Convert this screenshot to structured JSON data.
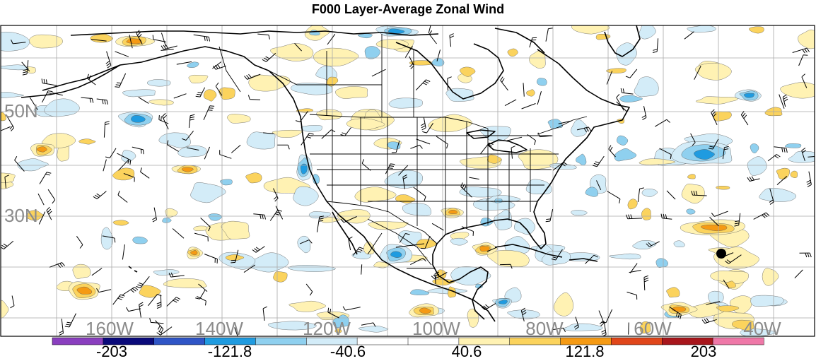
{
  "title": "F000 Layer-Average Zonal Wind",
  "map": {
    "lat_labels": [
      "50N",
      "30N"
    ],
    "lon_labels": [
      "160W",
      "140W",
      "120W",
      "100W",
      "80W",
      "60W",
      "40W"
    ]
  },
  "colorbar": {
    "colors": [
      "#8a3fbf",
      "#0a0a7a",
      "#2f55c6",
      "#1f9be0",
      "#8fd0ef",
      "#d3ecf8",
      "#ffffff",
      "#ffffff",
      "#fff2b3",
      "#fbd35d",
      "#f59a14",
      "#e0461a",
      "#a8161c",
      "#ef78a8"
    ],
    "labels": [
      "-203",
      "-121.8",
      "-40.6",
      "40.6",
      "121.8",
      "203"
    ]
  }
}
